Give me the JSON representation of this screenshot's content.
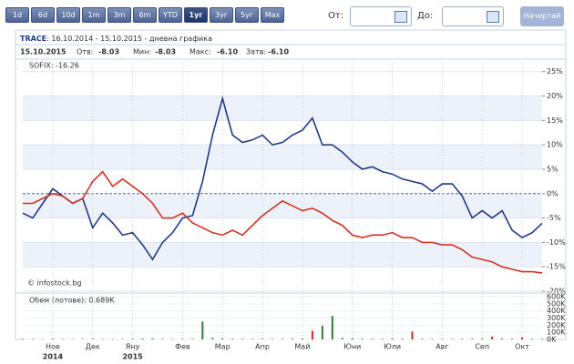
{
  "toolbar": {
    "buttons": [
      "1d",
      "6d",
      "10d",
      "1m",
      "3m",
      "6m",
      "YTD",
      "1уг",
      "3уг",
      "5уг",
      "Max"
    ],
    "active": 7,
    "from_label": "От:",
    "to_label": "До:",
    "submit": "Начертай"
  },
  "quote": {
    "date": "15.10.2015",
    "fields": [
      {
        "label": "Отв:",
        "value": "-8.03"
      },
      {
        "label": "Мин:",
        "value": "-8.03"
      },
      {
        "label": "Макс:",
        "value": "-6.10"
      },
      {
        "label": "Затв:",
        "value": "-6.10"
      }
    ]
  },
  "watermark": "© infostock.bg",
  "chart_data": [
    {
      "type": "line",
      "title": "TRACE",
      "subtitle": ": 16.10.2014 - 15.10.2015 - дневна графика",
      "categories": [
        null,
        null,
        null,
        "Ное",
        null,
        null,
        null,
        "Дек",
        null,
        null,
        null,
        "Яну",
        null,
        null,
        null,
        null,
        "Фев",
        null,
        null,
        null,
        "Мар",
        null,
        null,
        null,
        "Апр",
        null,
        null,
        null,
        "Май",
        null,
        null,
        null,
        null,
        "Юни",
        null,
        null,
        null,
        "Юли",
        null,
        null,
        null,
        null,
        "Авг",
        null,
        null,
        null,
        "Сеп",
        null,
        null,
        null,
        "Окт",
        null,
        null
      ],
      "years": [
        null,
        null,
        null,
        "2014",
        null,
        null,
        null,
        null,
        null,
        null,
        null,
        "2015",
        null,
        null,
        null,
        null,
        null,
        null,
        null,
        null,
        null,
        null,
        null,
        null,
        null,
        null,
        null,
        null,
        null,
        null,
        null,
        null,
        null,
        null,
        null,
        null,
        null,
        null,
        null,
        null,
        null,
        null,
        null,
        null,
        null,
        null,
        null,
        null,
        null,
        null,
        null,
        null,
        null
      ],
      "series": [
        {
          "name": "TRACE",
          "color": "#1f3a8a",
          "values": [
            -4,
            -5,
            -2,
            1,
            -0.5,
            -2,
            -1,
            -7,
            -4,
            -6,
            -8.5,
            -8,
            -10.5,
            -13.5,
            -10,
            -8,
            -5,
            -4.5,
            2.5,
            12,
            19.5,
            12,
            10.5,
            11,
            12,
            10,
            10.5,
            12,
            13,
            15.5,
            10,
            10,
            8.5,
            6.5,
            5,
            5.5,
            4.5,
            4,
            3,
            2.5,
            2,
            0.5,
            2,
            2,
            -0.5,
            -5,
            -3.5,
            -5,
            -3.5,
            -7.5,
            -9,
            -8,
            -6.1
          ]
        },
        {
          "name": "SOFIX: -16.26",
          "color": "#d7301f",
          "values": [
            -2,
            -2,
            -1,
            0,
            -0.5,
            -2,
            -1,
            2.5,
            4.5,
            1.5,
            3,
            1.5,
            0,
            -2,
            -5,
            -5,
            -4,
            -6,
            -7,
            -8,
            -8.5,
            -7.5,
            -8.5,
            -6.5,
            -4.5,
            -3,
            -1.5,
            -2.5,
            -3.5,
            -3,
            -4,
            -5.5,
            -6.5,
            -8.5,
            -9,
            -8.5,
            -8.5,
            -8,
            -9,
            -9,
            -10,
            -10,
            -10.5,
            -10.5,
            -11.5,
            -13,
            -13.5,
            -14,
            -15,
            -15.5,
            -16,
            -16,
            -16.26
          ]
        }
      ],
      "ylim": [
        -20,
        27
      ],
      "yticks": [
        {
          "value": 25,
          "label": "25%"
        },
        {
          "value": 20,
          "label": "20%"
        },
        {
          "value": 15,
          "label": "15%"
        },
        {
          "value": 10,
          "label": "10%"
        },
        {
          "value": 5,
          "label": "5%"
        },
        {
          "value": 0,
          "label": "0%"
        },
        {
          "value": -5,
          "label": "-5%"
        },
        {
          "value": -10,
          "label": "-10%"
        },
        {
          "value": -15,
          "label": "-15%"
        },
        {
          "value": -20,
          "label": "-20%"
        }
      ],
      "grid": true
    },
    {
      "type": "bar",
      "title": "Обем (лотове): 0.689K",
      "values": [
        8000,
        6000,
        5000,
        9000,
        7000,
        5000,
        6000,
        8000,
        5000,
        7000,
        6000,
        9000,
        12000,
        15000,
        8000,
        6000,
        7000,
        9000,
        250000,
        20000,
        15000,
        10000,
        8000,
        7000,
        9000,
        6000,
        8000,
        10000,
        12000,
        120000,
        190000,
        330000,
        20000,
        15000,
        10000,
        9000,
        8000,
        12000,
        10000,
        110000,
        9000,
        8000,
        7000,
        6000,
        8000,
        10000,
        9000,
        40000,
        12000,
        10000,
        30000,
        9000,
        8000
      ],
      "colors": [
        "#2e7d32",
        "#2e7d32",
        "#2e7d32",
        "#2e7d32",
        "#2e7d32",
        "#2e7d32",
        "#2e7d32",
        "#2e7d32",
        "#2e7d32",
        "#2e7d32",
        "#2e7d32",
        "#2e7d32",
        "#2e7d32",
        "#2e7d32",
        "#2e7d32",
        "#2e7d32",
        "#2e7d32",
        "#2e7d32",
        "#2e7d32",
        "#2e7d32",
        "#2e7d32",
        "#2e7d32",
        "#2e7d32",
        "#2e7d32",
        "#2e7d32",
        "#2e7d32",
        "#2e7d32",
        "#2e7d32",
        "#2e7d32",
        "#c62828",
        "#2e7d32",
        "#2e7d32",
        "#2e7d32",
        "#2e7d32",
        "#2e7d32",
        "#2e7d32",
        "#2e7d32",
        "#2e7d32",
        "#2e7d32",
        "#c62828",
        "#2e7d32",
        "#2e7d32",
        "#2e7d32",
        "#2e7d32",
        "#2e7d32",
        "#2e7d32",
        "#2e7d32",
        "#c62828",
        "#2e7d32",
        "#2e7d32",
        "#c62828",
        "#2e7d32",
        "#2e7d32"
      ],
      "ylim": [
        0,
        600000
      ],
      "yticks": [
        {
          "value": 600000,
          "label": "600K"
        },
        {
          "value": 500000,
          "label": "500K"
        },
        {
          "value": 400000,
          "label": "400K"
        },
        {
          "value": 300000,
          "label": "300K"
        },
        {
          "value": 200000,
          "label": "200K"
        },
        {
          "value": 100000,
          "label": "100K"
        },
        {
          "value": 0,
          "label": "0K"
        }
      ]
    }
  ]
}
